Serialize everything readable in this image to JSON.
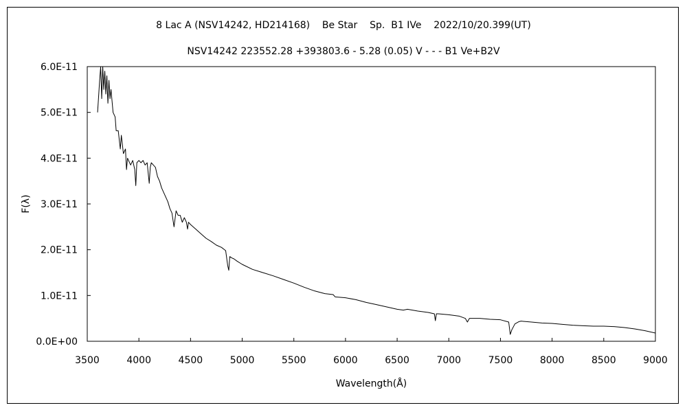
{
  "chart_data": {
    "type": "line",
    "title": "8 Lac A (NSV14242, HD214168)    Be Star    Sp.  B1 IVe    2022/10/20.399(UT)",
    "subtitle": "NSV14242 223552.28 +393803.6 - 5.28 (0.05) V - - - B1 Ve+B2V",
    "xlabel": "Wavelength(Å)",
    "ylabel": "F(λ)",
    "xlim": [
      3500,
      9000
    ],
    "ylim": [
      0,
      6e-11
    ],
    "x_ticks": [
      3500,
      4000,
      4500,
      5000,
      5500,
      6000,
      6500,
      7000,
      7500,
      8000,
      8500,
      9000
    ],
    "x_tick_labels": [
      "3500",
      "4000",
      "4500",
      "5000",
      "5500",
      "6000",
      "6500",
      "7000",
      "7500",
      "8000",
      "8500",
      "9000"
    ],
    "y_ticks": [
      0,
      1e-11,
      2e-11,
      3e-11,
      4e-11,
      5e-11,
      6e-11
    ],
    "y_tick_labels": [
      "0.0E+00",
      "1.0E-11",
      "2.0E-11",
      "3.0E-11",
      "4.0E-11",
      "5.0E-11",
      "6.0E-11"
    ],
    "grid": false,
    "legend": "none",
    "series": [
      {
        "color": "#000000",
        "x": [
          3600,
          3620,
          3630,
          3640,
          3650,
          3660,
          3670,
          3680,
          3690,
          3700,
          3710,
          3720,
          3730,
          3750,
          3770,
          3780,
          3800,
          3820,
          3830,
          3850,
          3870,
          3880,
          3890,
          3900,
          3920,
          3940,
          3960,
          3970,
          3980,
          4000,
          4020,
          4040,
          4060,
          4080,
          4100,
          4110,
          4120,
          4140,
          4160,
          4180,
          4200,
          4220,
          4250,
          4280,
          4300,
          4320,
          4340,
          4360,
          4380,
          4400,
          4420,
          4440,
          4460,
          4471,
          4480,
          4500,
          4550,
          4600,
          4650,
          4700,
          4750,
          4800,
          4840,
          4860,
          4870,
          4880,
          4900,
          4920,
          4950,
          5000,
          5100,
          5200,
          5300,
          5400,
          5500,
          5600,
          5700,
          5800,
          5880,
          5900,
          6000,
          6100,
          6200,
          6300,
          6400,
          6500,
          6560,
          6600,
          6700,
          6800,
          6860,
          6870,
          6880,
          6900,
          7000,
          7100,
          7160,
          7180,
          7200,
          7300,
          7400,
          7500,
          7580,
          7595,
          7610,
          7640,
          7680,
          7700,
          7800,
          7900,
          8000,
          8100,
          8200,
          8300,
          8400,
          8500,
          8600,
          8700,
          8800,
          8900,
          9000
        ],
        "y": [
          5e-11,
          5.7e-11,
          6e-11,
          5.3e-11,
          6e-11,
          5.5e-11,
          5.9e-11,
          5.4e-11,
          5.8e-11,
          5.2e-11,
          5.7e-11,
          5.3e-11,
          5.5e-11,
          5e-11,
          4.9e-11,
          4.6e-11,
          4.6e-11,
          4.2e-11,
          4.5e-11,
          4.1e-11,
          4.2e-11,
          3.75e-11,
          4e-11,
          3.95e-11,
          3.85e-11,
          3.95e-11,
          3.75e-11,
          3.4e-11,
          3.9e-11,
          3.95e-11,
          3.9e-11,
          3.95e-11,
          3.85e-11,
          3.9e-11,
          3.45e-11,
          3.8e-11,
          3.9e-11,
          3.85e-11,
          3.8e-11,
          3.6e-11,
          3.5e-11,
          3.35e-11,
          3.2e-11,
          3.05e-11,
          2.9e-11,
          2.8e-11,
          2.5e-11,
          2.85e-11,
          2.75e-11,
          2.75e-11,
          2.6e-11,
          2.7e-11,
          2.6e-11,
          2.45e-11,
          2.6e-11,
          2.55e-11,
          2.45e-11,
          2.35e-11,
          2.25e-11,
          2.18e-11,
          2.1e-11,
          2.05e-11,
          1.98e-11,
          1.65e-11,
          1.55e-11,
          1.85e-11,
          1.82e-11,
          1.8e-11,
          1.75e-11,
          1.68e-11,
          1.57e-11,
          1.5e-11,
          1.43e-11,
          1.35e-11,
          1.27e-11,
          1.18e-11,
          1.1e-11,
          1.04e-11,
          1.02e-11,
          9.7e-12,
          9.5e-12,
          9.1e-12,
          8.5e-12,
          8e-12,
          7.5e-12,
          7e-12,
          6.8e-12,
          7e-12,
          6.6e-12,
          6.3e-12,
          6e-12,
          4.5e-12,
          6e-12,
          6e-12,
          5.8e-12,
          5.5e-12,
          5e-12,
          4.2e-12,
          5e-12,
          5e-12,
          4.8e-12,
          4.7e-12,
          4.2e-12,
          1.5e-12,
          2.5e-12,
          3.8e-12,
          4.3e-12,
          4.4e-12,
          4.2e-12,
          4e-12,
          3.9e-12,
          3.7e-12,
          3.5e-12,
          3.4e-12,
          3.3e-12,
          3.3e-12,
          3.2e-12,
          3e-12,
          2.7e-12,
          2.3e-12,
          1.8e-12
        ]
      }
    ]
  }
}
